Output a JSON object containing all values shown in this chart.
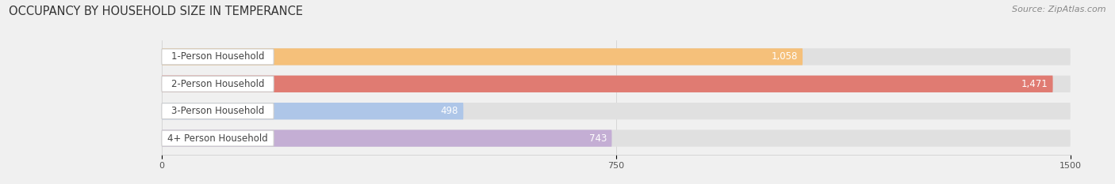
{
  "title": "OCCUPANCY BY HOUSEHOLD SIZE IN TEMPERANCE",
  "source": "Source: ZipAtlas.com",
  "categories": [
    "1-Person Household",
    "2-Person Household",
    "3-Person Household",
    "4+ Person Household"
  ],
  "values": [
    1058,
    1471,
    498,
    743
  ],
  "value_labels": [
    "1,058",
    "1,471",
    "498",
    "743"
  ],
  "bar_colors": [
    "#f5c07a",
    "#e07b72",
    "#aec6e8",
    "#c4aed4"
  ],
  "xlim": [
    0,
    1500
  ],
  "xticks": [
    0,
    750,
    1500
  ],
  "background_color": "#f0f0f0",
  "bar_bg_color": "#e0e0e0",
  "title_fontsize": 10.5,
  "source_fontsize": 8,
  "label_fontsize": 8.5,
  "value_fontsize": 8.5,
  "bar_height": 0.62,
  "fig_width": 14.06,
  "fig_height": 2.33
}
